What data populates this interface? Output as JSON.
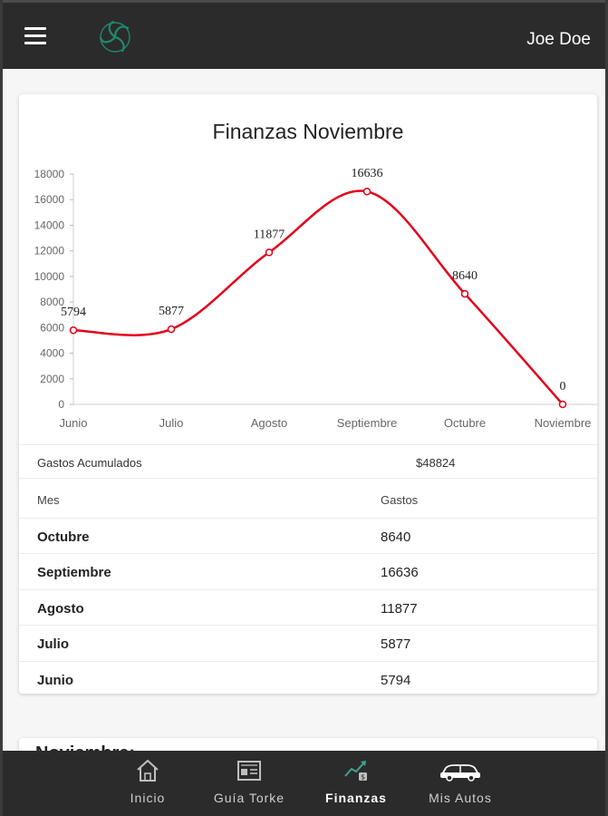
{
  "header": {
    "user_name": "Joe Doe"
  },
  "card": {
    "title": "Finanzas Noviembre"
  },
  "chart_data": {
    "type": "line",
    "title": "Finanzas Noviembre",
    "categories": [
      "Junio",
      "Julio",
      "Agosto",
      "Septiembre",
      "Octubre",
      "Noviembre"
    ],
    "values": [
      5794,
      5877,
      11877,
      16636,
      8640,
      0
    ],
    "ylim": [
      0,
      18000
    ],
    "yticks": [
      0,
      2000,
      4000,
      6000,
      8000,
      10000,
      12000,
      14000,
      16000,
      18000
    ],
    "data_labels": [
      "5794",
      "5877",
      "11877",
      "16636",
      "8640",
      "0"
    ],
    "line_color": "#e3001b",
    "grid": false,
    "legend": "none"
  },
  "summary": {
    "label": "Gastos Acumulados",
    "value": "$48824"
  },
  "table": {
    "headers": [
      "Mes",
      "Gastos"
    ],
    "rows": [
      {
        "mes": "Octubre",
        "gastos": "8640"
      },
      {
        "mes": "Septiembre",
        "gastos": "16636"
      },
      {
        "mes": "Agosto",
        "gastos": "11877"
      },
      {
        "mes": "Julio",
        "gastos": "5877"
      },
      {
        "mes": "Junio",
        "gastos": "5794"
      }
    ]
  },
  "card2": {
    "heading": "Noviembre:"
  },
  "bottom_nav": {
    "items": [
      {
        "label": "Inicio",
        "icon": "home-icon"
      },
      {
        "label": "Guía Torke",
        "icon": "id-card-icon"
      },
      {
        "label": "Finanzas",
        "icon": "finance-chart-icon"
      },
      {
        "label": "Mis Autos",
        "icon": "car-icon"
      }
    ],
    "active_index": 2
  },
  "colors": {
    "appbar": "#2b2b2b",
    "accent_line": "#e3001b",
    "logo": "#1f8a6f"
  }
}
